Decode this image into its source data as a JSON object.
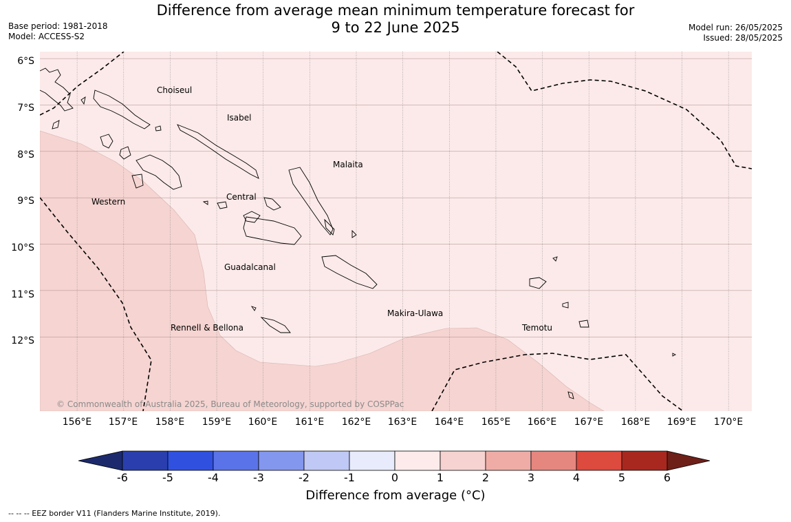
{
  "title": {
    "line1": "Difference from average mean minimum temperature forecast for",
    "line2": "9 to 22 June 2025"
  },
  "meta_left": {
    "base_period": "Base period: 1981-2018",
    "model": "Model: ACCESS-S2"
  },
  "meta_right": {
    "model_run": "Model run: 26/05/2025",
    "issued": "Issued: 28/05/2025"
  },
  "map": {
    "latitude_labels": [
      "6°S",
      "7°S",
      "8°S",
      "9°S",
      "10°S",
      "11°S",
      "12°S"
    ],
    "longitude_labels": [
      "156°E",
      "157°E",
      "158°E",
      "159°E",
      "160°E",
      "161°E",
      "162°E",
      "163°E",
      "164°E",
      "165°E",
      "166°E",
      "167°E",
      "168°E",
      "169°E",
      "170°E"
    ],
    "latitude_range": [
      -13.6,
      -5.85
    ],
    "longitude_range": [
      155.2,
      170.5
    ],
    "region_labels": [
      "Choiseul",
      "Isabel",
      "Malaita",
      "Central",
      "Western",
      "Guadalcanal",
      "Makira-Ulawa",
      "Temotu",
      "Rennell & Bellona"
    ],
    "copyright": "© Commonwealth of Australia 2025, Bureau of Meteorology, supported by COSPPac",
    "anomaly_fill": {
      "class_0_to_1": "#fbeae9",
      "class_1_to_2": "#f5d4d1"
    }
  },
  "colorbar": {
    "label": "Difference from average (°C)",
    "ticks": [
      "-6",
      "-5",
      "-4",
      "-3",
      "-2",
      "-1",
      "0",
      "1",
      "2",
      "3",
      "4",
      "5",
      "6"
    ],
    "under_color": "#1c2a6d",
    "colors": [
      "#2a3fad",
      "#3051e0",
      "#5b73e8",
      "#8497ee",
      "#c0c9f5",
      "#e7ebfb",
      "#fcebea",
      "#f6d3d0",
      "#efaca7",
      "#e6877f",
      "#dd4a3e",
      "#a8281f"
    ],
    "over_color": "#6e1f18"
  },
  "eez_note": "--  --  -- EEZ border V11 (Flanders Marine Institute, 2019)."
}
